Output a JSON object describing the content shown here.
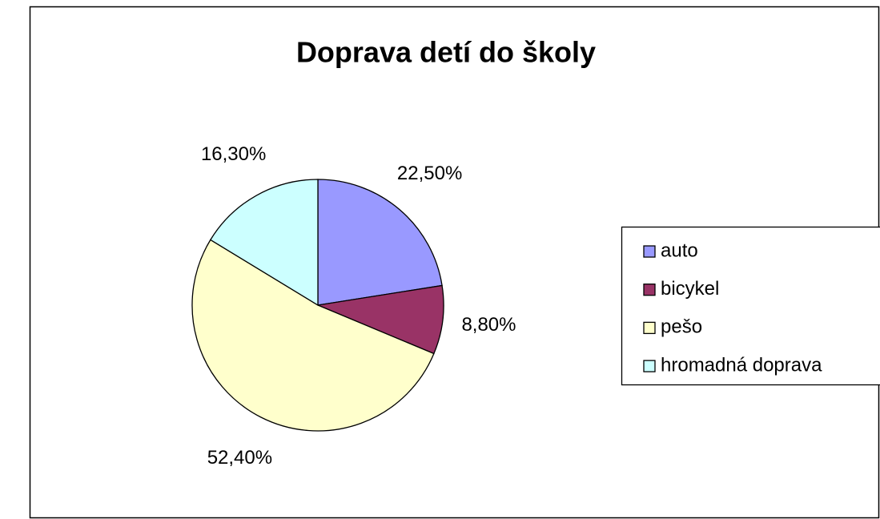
{
  "chart_data": {
    "type": "pie",
    "title": "Doprava detí do školy",
    "categories": [
      "auto",
      "bicykel",
      "pešo",
      "hromadná doprava"
    ],
    "values": [
      22.5,
      8.8,
      52.4,
      16.3
    ],
    "value_labels": [
      "22,50%",
      "8,80%",
      "52,40%",
      "16,30%"
    ],
    "colors": [
      "#9999ff",
      "#993366",
      "#ffffcc",
      "#ccffff"
    ],
    "legend": "right"
  }
}
